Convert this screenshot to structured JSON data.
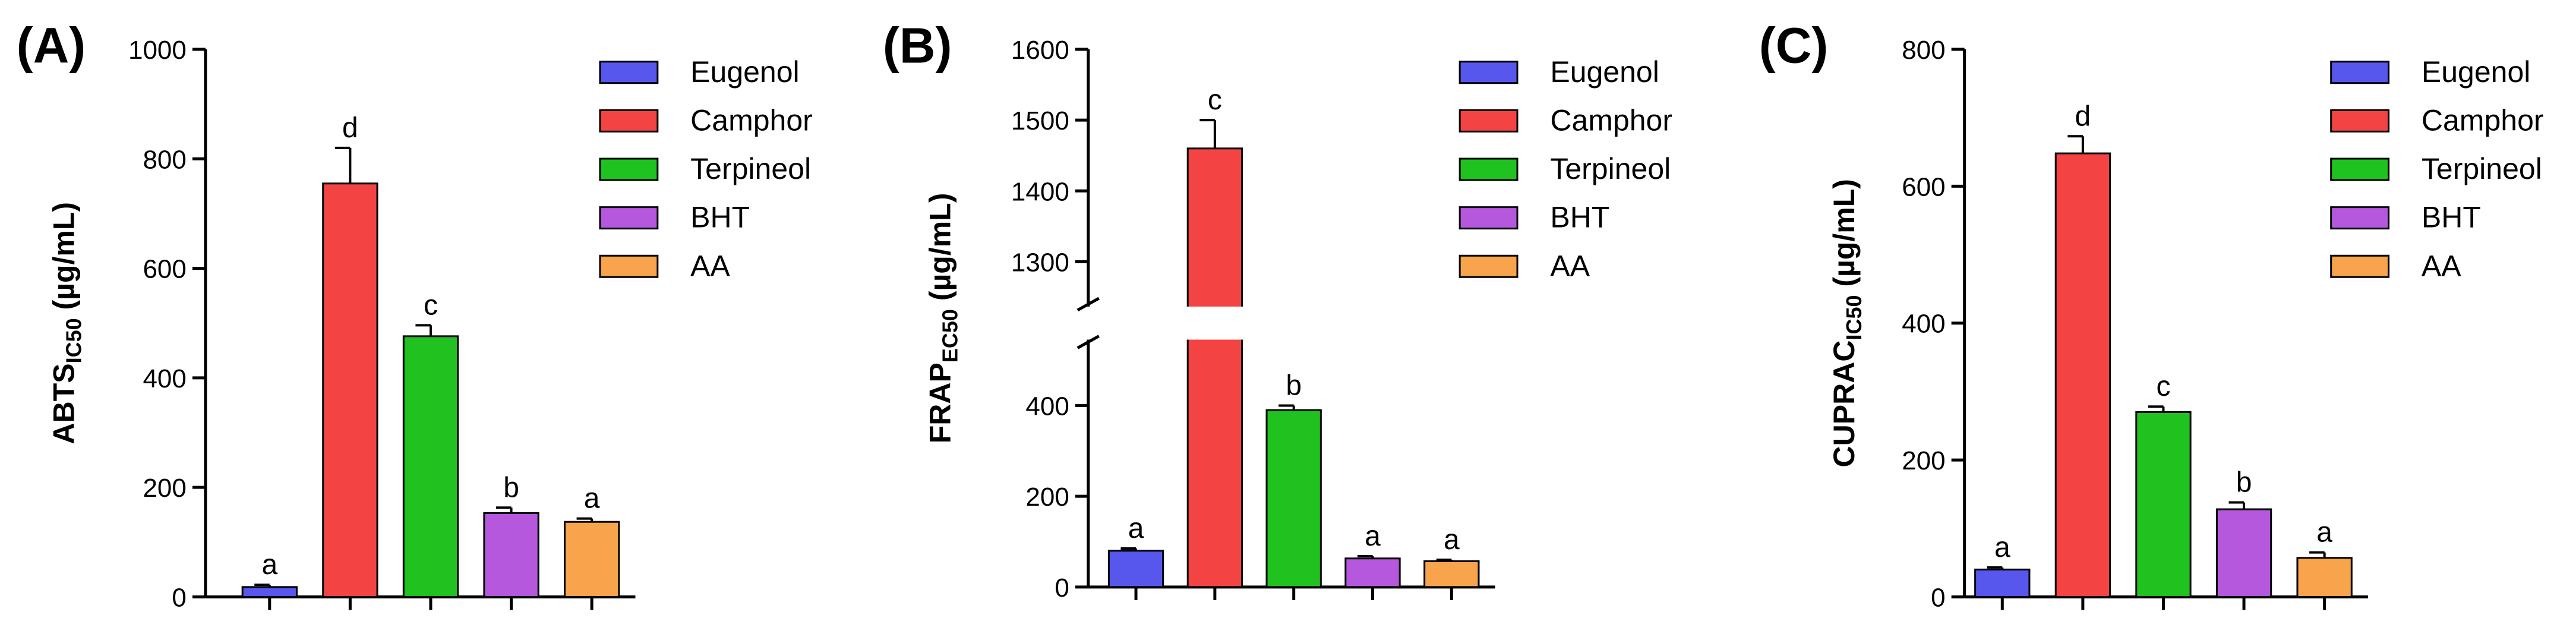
{
  "chart_data": [
    {
      "type": "bar",
      "panel_label": "(A)",
      "y_label": "ABTS",
      "y_label_sub": "IC50",
      "y_label_unit": " (µg/mL)",
      "ylim": [
        0,
        1000
      ],
      "yticks": [
        0,
        200,
        400,
        600,
        800,
        1000
      ],
      "series": [
        {
          "name": "Eugenol",
          "color": "#5757ee",
          "values": [
            18
          ],
          "errors": [
            4
          ],
          "letters": [
            "a"
          ]
        },
        {
          "name": "Camphor",
          "color": "#f44343",
          "values": [
            755
          ],
          "errors": [
            65
          ],
          "letters": [
            "d"
          ]
        },
        {
          "name": "Terpineol",
          "color": "#1fc21f",
          "values": [
            476
          ],
          "errors": [
            20
          ],
          "letters": [
            "c"
          ]
        },
        {
          "name": "BHT",
          "color": "#b558dd",
          "values": [
            153
          ],
          "errors": [
            10
          ],
          "letters": [
            "b"
          ]
        },
        {
          "name": "AA",
          "color": "#f7a44c",
          "values": [
            137
          ],
          "errors": [
            6
          ],
          "letters": [
            "a"
          ]
        }
      ]
    },
    {
      "type": "bar",
      "panel_label": "(B)",
      "y_label": "FRAP",
      "y_label_sub": "EC50",
      "y_label_unit": " (µg/mL)",
      "ylim": [
        0,
        1600
      ],
      "axis_break": [
        540,
        1240
      ],
      "yticks": [
        0,
        200,
        400,
        1300,
        1400,
        1500,
        1600
      ],
      "series": [
        {
          "name": "Eugenol",
          "color": "#5757ee",
          "values": [
            80
          ],
          "errors": [
            5
          ],
          "letters": [
            "a"
          ]
        },
        {
          "name": "Camphor",
          "color": "#f44343",
          "values": [
            1460
          ],
          "errors": [
            40
          ],
          "letters": [
            "c"
          ]
        },
        {
          "name": "Terpineol",
          "color": "#1fc21f",
          "values": [
            390
          ],
          "errors": [
            10
          ],
          "letters": [
            "b"
          ]
        },
        {
          "name": "BHT",
          "color": "#b558dd",
          "values": [
            63
          ],
          "errors": [
            5
          ],
          "letters": [
            "a"
          ]
        },
        {
          "name": "AA",
          "color": "#f7a44c",
          "values": [
            57
          ],
          "errors": [
            3
          ],
          "letters": [
            "a"
          ]
        }
      ]
    },
    {
      "type": "bar",
      "panel_label": "(C)",
      "y_label": "CUPRAC",
      "y_label_sub": "IC50",
      "y_label_unit": " (µg/mL)",
      "ylim": [
        0,
        800
      ],
      "yticks": [
        0,
        200,
        400,
        600,
        800
      ],
      "series": [
        {
          "name": "Eugenol",
          "color": "#5757ee",
          "values": [
            40
          ],
          "errors": [
            3
          ],
          "letters": [
            "a"
          ]
        },
        {
          "name": "Camphor",
          "color": "#f44343",
          "values": [
            648
          ],
          "errors": [
            25
          ],
          "letters": [
            "d"
          ]
        },
        {
          "name": "Terpineol",
          "color": "#1fc21f",
          "values": [
            270
          ],
          "errors": [
            8
          ],
          "letters": [
            "c"
          ]
        },
        {
          "name": "BHT",
          "color": "#b558dd",
          "values": [
            128
          ],
          "errors": [
            10
          ],
          "letters": [
            "b"
          ]
        },
        {
          "name": "AA",
          "color": "#f7a44c",
          "values": [
            57
          ],
          "errors": [
            8
          ],
          "letters": [
            "a"
          ]
        }
      ]
    }
  ]
}
